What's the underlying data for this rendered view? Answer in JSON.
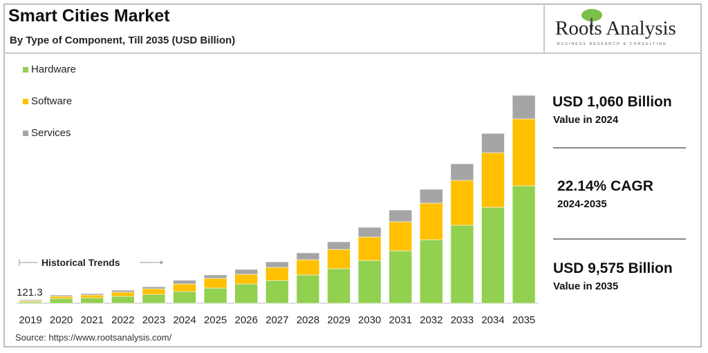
{
  "header": {
    "title": "Smart Cities Market",
    "subtitle": "By Type of Component, Till 2035 (USD Billion)"
  },
  "logo": {
    "name": "Roots Analysis",
    "tagline": "BUSINESS RESEARCH & CONSULTING"
  },
  "highlights": [
    {
      "value": "USD 1,060 Billion",
      "caption": "Value in 2024"
    },
    {
      "value": "22.14% CAGR",
      "caption": "2024-2035"
    },
    {
      "value": "USD 9,575 Billion",
      "caption": "Value in 2035"
    }
  ],
  "source": "Source: https://www.rootsanalysis.com/",
  "colors": {
    "Hardware": "#92d050",
    "Software": "#ffc000",
    "Services": "#a5a5a5"
  },
  "chart_data": {
    "type": "bar",
    "stacked": true,
    "title": "Smart Cities Market",
    "subtitle": "By Type of Component, Till 2035 (USD Billion)",
    "categories": [
      "2019",
      "2020",
      "2021",
      "2022",
      "2023",
      "2024",
      "2025",
      "2026",
      "2027",
      "2028",
      "2029",
      "2030",
      "2031",
      "2032",
      "2033",
      "2034",
      "2035"
    ],
    "series": [
      {
        "name": "Hardware",
        "values": [
          65,
          220,
          250,
          320,
          410,
          540,
          700,
          890,
          1049,
          1304,
          1590,
          1972,
          2417,
          2926,
          3594,
          4420,
          5408
        ]
      },
      {
        "name": "Software",
        "values": [
          40,
          100,
          130,
          190,
          255,
          350,
          445,
          445,
          604,
          700,
          890,
          1081,
          1336,
          1686,
          2067,
          2512,
          3085
        ]
      },
      {
        "name": "Services",
        "values": [
          16.3,
          60,
          65,
          90,
          95,
          170,
          160,
          225,
          254,
          318,
          350,
          445,
          541,
          636,
          763,
          890,
          1082
        ]
      }
    ],
    "data_labels": [
      {
        "category": "2019",
        "text": "121.3"
      }
    ],
    "annotation": "Historical Trends",
    "legend": "top-left",
    "grid": false,
    "ylim": [
      0,
      9575
    ]
  }
}
